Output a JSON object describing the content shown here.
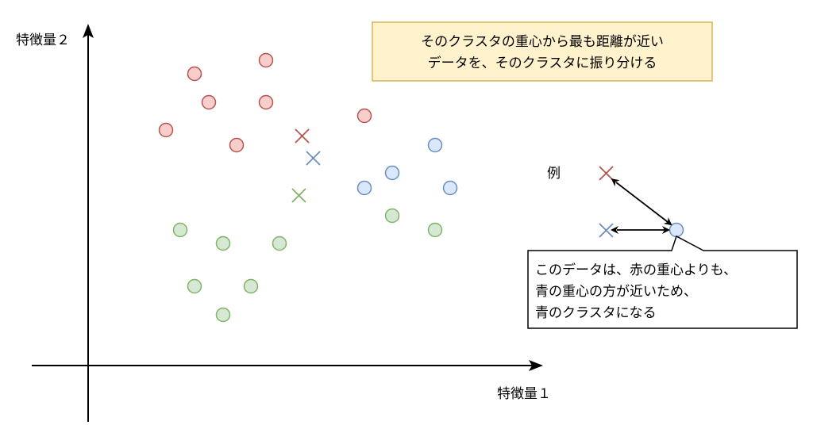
{
  "axes": {
    "y_label": "特徴量２",
    "x_label": "特徴量１"
  },
  "note": {
    "lines": [
      "そのクラスタの重心から最も距離が近い",
      "データを、そのクラスタに振り分ける"
    ]
  },
  "example": {
    "label": "例"
  },
  "callout": {
    "lines": [
      "このデータは、赤の重心よりも、",
      "青の重心の方が近いため、",
      "青のクラスタになる"
    ]
  },
  "colors": {
    "red_fill": "#f8cecc",
    "red_stroke": "#b85450",
    "blue_fill": "#dae8fc",
    "blue_stroke": "#6c8ebf",
    "green_fill": "#d5e8d4",
    "green_stroke": "#82b366",
    "note_fill": "#fff2cc",
    "note_stroke": "#d6b656"
  },
  "icons": {
    "centroid": "x-mark-icon",
    "point": "circle-icon",
    "arrow": "arrow-icon"
  }
}
